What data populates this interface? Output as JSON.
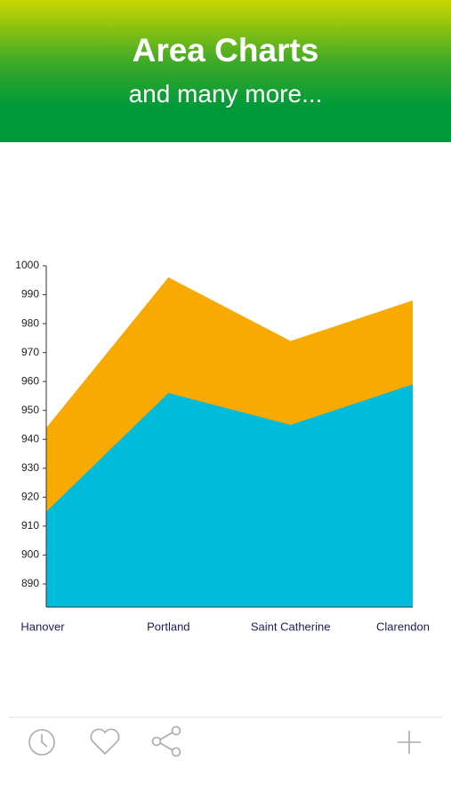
{
  "header": {
    "title": "Area Charts",
    "subtitle": "and many more..."
  },
  "chart_data": {
    "type": "area",
    "categories": [
      "Hanover",
      "Portland",
      "Saint Catherine",
      "Clarendon"
    ],
    "series": [
      {
        "color": "#f9aa00",
        "values": [
          944,
          996,
          974,
          988
        ]
      },
      {
        "color": "#00bbd9",
        "values": [
          915,
          956,
          945,
          959
        ]
      }
    ],
    "ylim": [
      882,
      1000
    ],
    "yticks": [
      890,
      900,
      910,
      920,
      930,
      940,
      950,
      960,
      970,
      980,
      990,
      1000
    ],
    "grid": false
  }
}
